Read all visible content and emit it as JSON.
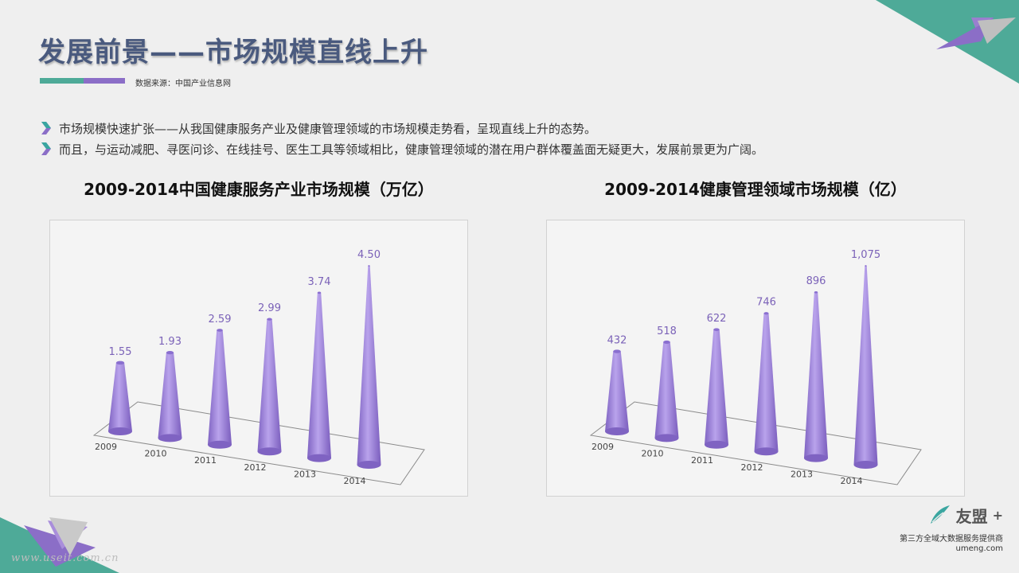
{
  "title": "发展前景——市场规模直线上升",
  "source": "数据来源：中国产业信息网",
  "bullets": [
    "市场规模快速扩张——从我国健康服务产业及健康管理领域的市场规模走势看，呈现直线上升的态势。",
    "而且，与运动减肥、寻医问诊、在线挂号、医生工具等领域相比，健康管理领域的潜在用户群体覆盖面无疑更大，发展前景更为广阔。"
  ],
  "colors": {
    "title": "#4a5a7e",
    "accent_teal": "#4eaa98",
    "accent_purple": "#8b6ec7",
    "cone": "#9b7fd8",
    "label": "#7b62b8",
    "bullet_icon_teal": "#3aa6a0",
    "bullet_icon_purple": "#8b6ec7"
  },
  "chart_data": [
    {
      "type": "bar",
      "title": "2009-2014中国健康服务产业市场规模（万亿）",
      "categories": [
        "2009",
        "2010",
        "2011",
        "2012",
        "2013",
        "2014"
      ],
      "values": [
        1.55,
        1.93,
        2.59,
        2.99,
        3.74,
        4.5
      ],
      "labels": [
        "1.55",
        "1.93",
        "2.59",
        "2.99",
        "3.74",
        "4.50"
      ],
      "ylim": [
        0,
        4.5
      ],
      "grid": false,
      "legend": "none"
    },
    {
      "type": "bar",
      "title": "2009-2014健康管理领域市场规模（亿）",
      "categories": [
        "2009",
        "2010",
        "2011",
        "2012",
        "2013",
        "2014"
      ],
      "values": [
        432,
        518,
        622,
        746,
        896,
        1075
      ],
      "labels": [
        "432",
        "518",
        "622",
        "746",
        "896",
        "1,075"
      ],
      "ylim": [
        0,
        1075
      ],
      "grid": false,
      "legend": "none"
    }
  ],
  "logo": {
    "name": "友盟",
    "plus": "+",
    "tagline": "第三方全域大数据服务提供商",
    "url": "umeng.com"
  },
  "watermark": "www.useit.com.cn",
  "icons": {
    "bullet": "chevron-right-icon",
    "logo": "umeng-feather-icon"
  }
}
